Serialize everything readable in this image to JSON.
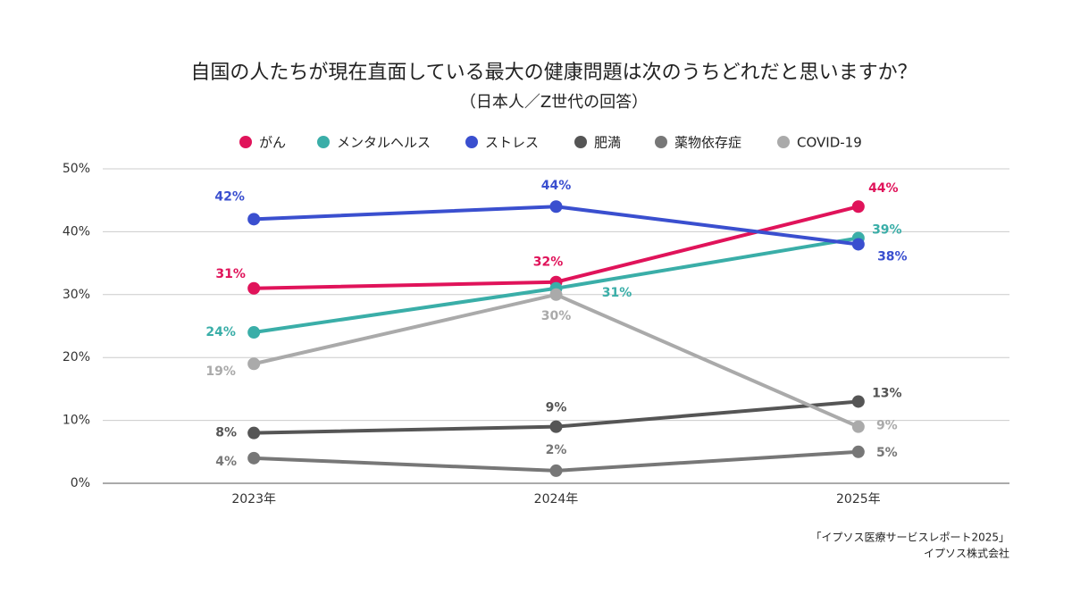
{
  "chart_data": {
    "type": "line",
    "title": "自国の人たちが現在直面している最大の健康問題は次のうちどれだと思いますか？",
    "subtitle": "（日本人／Z世代の回答）",
    "categories": [
      "2023年",
      "2024年",
      "2025年"
    ],
    "series": [
      {
        "name": "がん",
        "color": "#e0135a",
        "values": [
          31,
          32,
          44
        ],
        "value_labels": [
          "31%",
          "32%",
          "44%"
        ]
      },
      {
        "name": "メンタルヘルス",
        "color": "#3aaea8",
        "values": [
          24,
          31,
          39
        ],
        "value_labels": [
          "24%",
          "31%",
          "39%"
        ]
      },
      {
        "name": "ストレス",
        "color": "#3a4fcf",
        "values": [
          42,
          44,
          38
        ],
        "value_labels": [
          "42%",
          "44%",
          "38%"
        ]
      },
      {
        "name": "肥満",
        "color": "#555555",
        "values": [
          8,
          9,
          13
        ],
        "value_labels": [
          "8%",
          "9%",
          "13%"
        ]
      },
      {
        "name": "薬物依存症",
        "color": "#777777",
        "values": [
          4,
          2,
          5
        ],
        "value_labels": [
          "4%",
          "2%",
          "5%"
        ]
      },
      {
        "name": "COVID-19",
        "color": "#aaaaaa",
        "values": [
          19,
          30,
          9
        ],
        "value_labels": [
          "19%",
          "30%",
          "9%"
        ]
      }
    ],
    "ylim": [
      0,
      50
    ],
    "yticks": [
      {
        "value": 0,
        "label": "0%"
      },
      {
        "value": 10,
        "label": "10%"
      },
      {
        "value": 20,
        "label": "20%"
      },
      {
        "value": 30,
        "label": "30%"
      },
      {
        "value": 40,
        "label": "40%"
      },
      {
        "value": 50,
        "label": "50%"
      }
    ],
    "grid": true,
    "legend": "top",
    "source": [
      "「イプソス医療サービスレポート2025」",
      "イプソス株式会社"
    ]
  }
}
